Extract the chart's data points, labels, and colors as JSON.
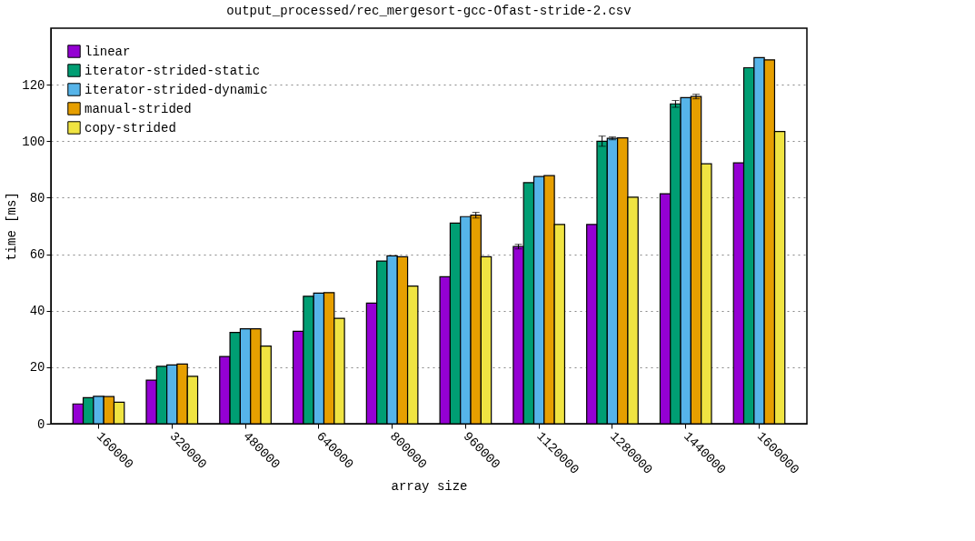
{
  "chart_data": {
    "type": "bar",
    "title": "output_processed/rec_mergesort-gcc-Ofast-stride-2.csv",
    "xlabel": "array size",
    "ylabel": "time [ms]",
    "categories": [
      "160000",
      "320000",
      "480000",
      "640000",
      "800000",
      "960000",
      "1120000",
      "1280000",
      "1440000",
      "1600000"
    ],
    "series": [
      {
        "name": "linear",
        "color": "#9400d3",
        "values": [
          7.0,
          15.4,
          23.8,
          32.7,
          42.7,
          52.0,
          62.7,
          70.5,
          81.4,
          92.3
        ],
        "errors": [
          null,
          null,
          null,
          null,
          null,
          null,
          0.8,
          null,
          null,
          null
        ]
      },
      {
        "name": "iterator-strided-static",
        "color": "#009e73",
        "values": [
          9.2,
          20.3,
          32.3,
          45.1,
          57.6,
          71.0,
          85.3,
          100.0,
          113.2,
          126.0
        ],
        "errors": [
          null,
          null,
          null,
          null,
          null,
          null,
          null,
          1.8,
          1.2,
          null
        ]
      },
      {
        "name": "iterator-strided-dynamic",
        "color": "#56b4e9",
        "values": [
          9.7,
          20.8,
          33.6,
          46.2,
          59.4,
          73.3,
          87.5,
          101.0,
          115.4,
          129.6
        ],
        "errors": [
          null,
          null,
          null,
          null,
          null,
          null,
          null,
          0.5,
          null,
          null
        ]
      },
      {
        "name": "manual-strided",
        "color": "#e69f00",
        "values": [
          9.6,
          21.1,
          33.6,
          46.4,
          59.1,
          73.8,
          87.8,
          101.2,
          115.8,
          128.8
        ],
        "errors": [
          null,
          null,
          null,
          null,
          null,
          1.0,
          null,
          null,
          0.8,
          null
        ]
      },
      {
        "name": "copy-strided",
        "color": "#f0e442",
        "values": [
          7.6,
          16.8,
          27.5,
          37.3,
          48.7,
          59.1,
          70.5,
          80.2,
          92.0,
          103.4
        ],
        "errors": [
          null,
          null,
          null,
          null,
          null,
          null,
          null,
          null,
          null,
          null
        ]
      }
    ],
    "ylim": [
      0,
      140
    ],
    "yticks": [
      0,
      20,
      40,
      60,
      80,
      100,
      120
    ],
    "grid": "y",
    "legend": "top left"
  }
}
